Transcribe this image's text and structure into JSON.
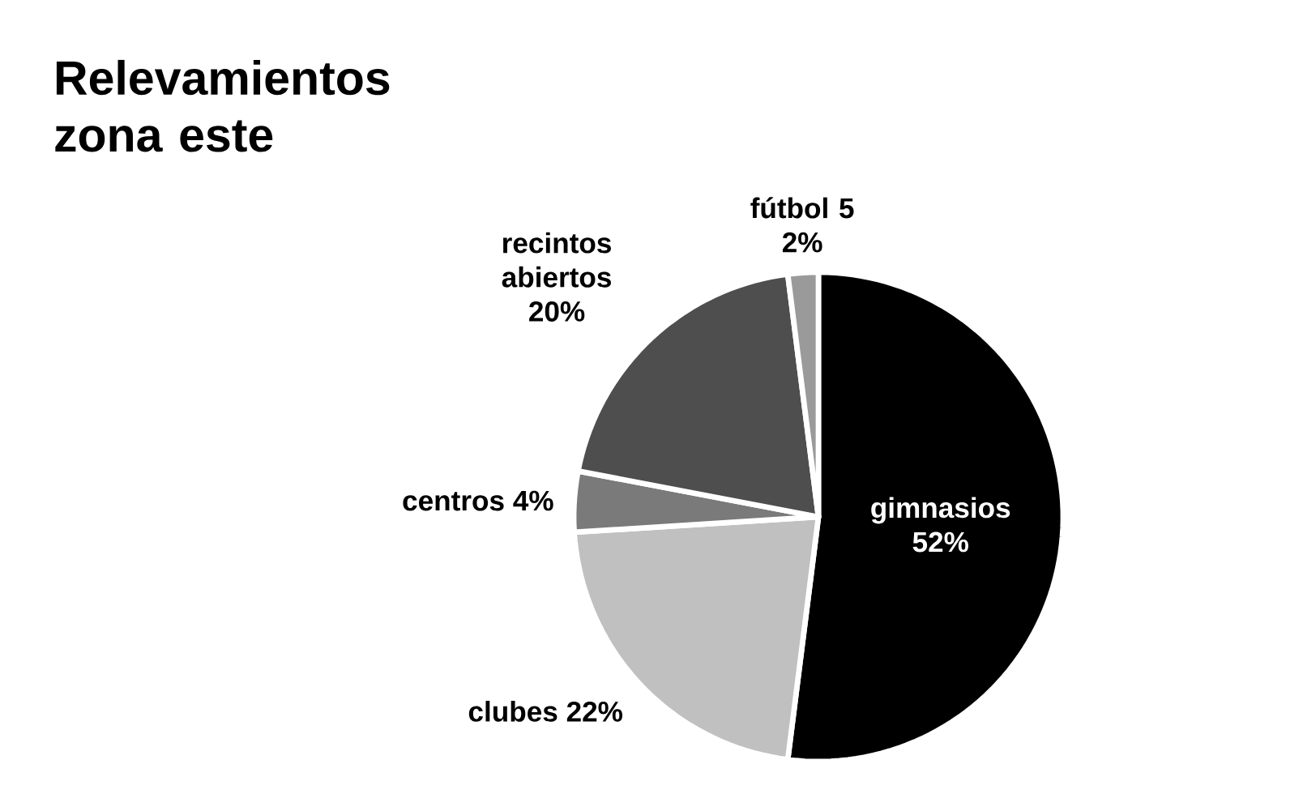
{
  "chart_data": {
    "type": "pie",
    "title": "Relevamientos zona este",
    "categories": [
      "gimnasios",
      "clubes",
      "centros",
      "recintos abiertos",
      "fútbol 5"
    ],
    "values": [
      52,
      22,
      4,
      20,
      2
    ],
    "value_labels": [
      "52%",
      "22%",
      "4%",
      "20%",
      "2%"
    ],
    "colors": [
      "#000000",
      "#c0c0c0",
      "#7a7a7a",
      "#4e4e4e",
      "#9a9a9a"
    ]
  }
}
